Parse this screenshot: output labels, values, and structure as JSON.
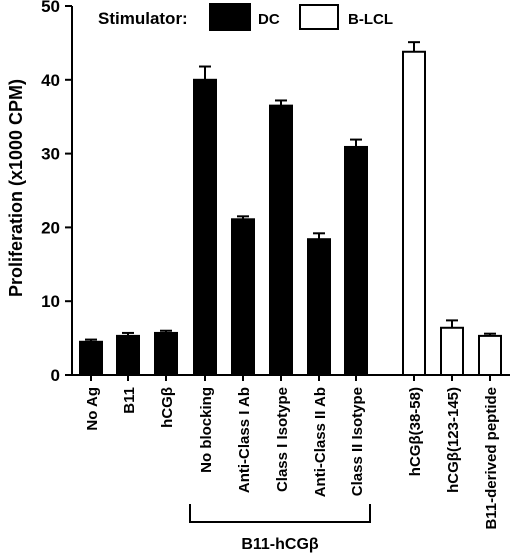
{
  "chart_data": {
    "type": "bar",
    "ylabel": "Proliferation (x1000 CPM)",
    "ylim": [
      0,
      50
    ],
    "yticks": [
      0,
      10,
      20,
      30,
      40,
      50
    ],
    "legend": {
      "title": "Stimulator:",
      "placement": "top",
      "entries": [
        {
          "label": "DC",
          "fill": "#000000"
        },
        {
          "label": "B-LCL",
          "fill": "#ffffff"
        }
      ]
    },
    "group_label": "B11-hCGβ",
    "bars": [
      {
        "category": "No Ag",
        "value": 4.5,
        "error": 0.3,
        "stimulator": "DC"
      },
      {
        "category": "B11",
        "value": 5.3,
        "error": 0.4,
        "stimulator": "DC"
      },
      {
        "category": "hCGβ",
        "value": 5.7,
        "error": 0.3,
        "stimulator": "DC"
      },
      {
        "category": "No blocking",
        "value": 40.0,
        "error": 1.8,
        "stimulator": "DC"
      },
      {
        "category": "Anti-Class I Ab",
        "value": 21.1,
        "error": 0.4,
        "stimulator": "DC"
      },
      {
        "category": "Class I Isotype",
        "value": 36.5,
        "error": 0.7,
        "stimulator": "DC"
      },
      {
        "category": "Anti-Class II Ab",
        "value": 18.4,
        "error": 0.8,
        "stimulator": "DC"
      },
      {
        "category": "Class II Isotype",
        "value": 30.9,
        "error": 1.0,
        "stimulator": "DC"
      },
      {
        "category": "hCGβ(38-58)",
        "value": 43.8,
        "error": 1.3,
        "stimulator": "B-LCL"
      },
      {
        "category": "hCGβ(123-145)",
        "value": 6.4,
        "error": 1.0,
        "stimulator": "B-LCL"
      },
      {
        "category": "B11-derived peptide",
        "value": 5.3,
        "error": 0.3,
        "stimulator": "B-LCL"
      }
    ]
  }
}
